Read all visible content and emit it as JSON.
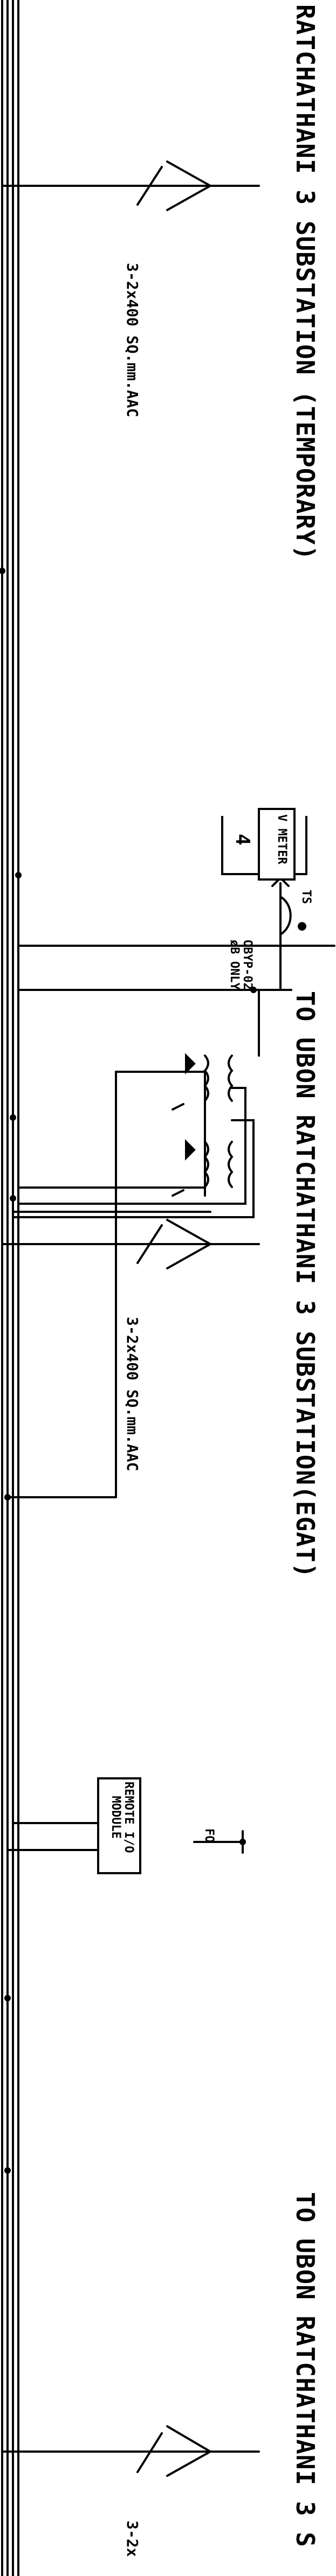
{
  "texts": {
    "substation_temporary": "RATCHATHANI 3 SUBSTATION (TEMPORARY)",
    "cable_1": "3-2x400 SQ.mm.AAC",
    "substation_egat": "TO UBON RATCHATHANI 3 SUBSTATION(EGAT)",
    "cable_2": "3-2x400 SQ.mm.AAC",
    "substation_partial": "TO UBON RATCHATHANI 3 S",
    "cable_3": "3-2x",
    "v_meter": "V METER",
    "ts": "TS",
    "obyp_line1": "OBYP-02",
    "obyp_line2": "øB ONLY",
    "remote_io_line1": "REMOTE I/O",
    "remote_io_line2": "MODULE",
    "fo": "FO",
    "box_fragment": "4"
  },
  "colors": {
    "line": "#000000",
    "background": "#ffffff"
  }
}
